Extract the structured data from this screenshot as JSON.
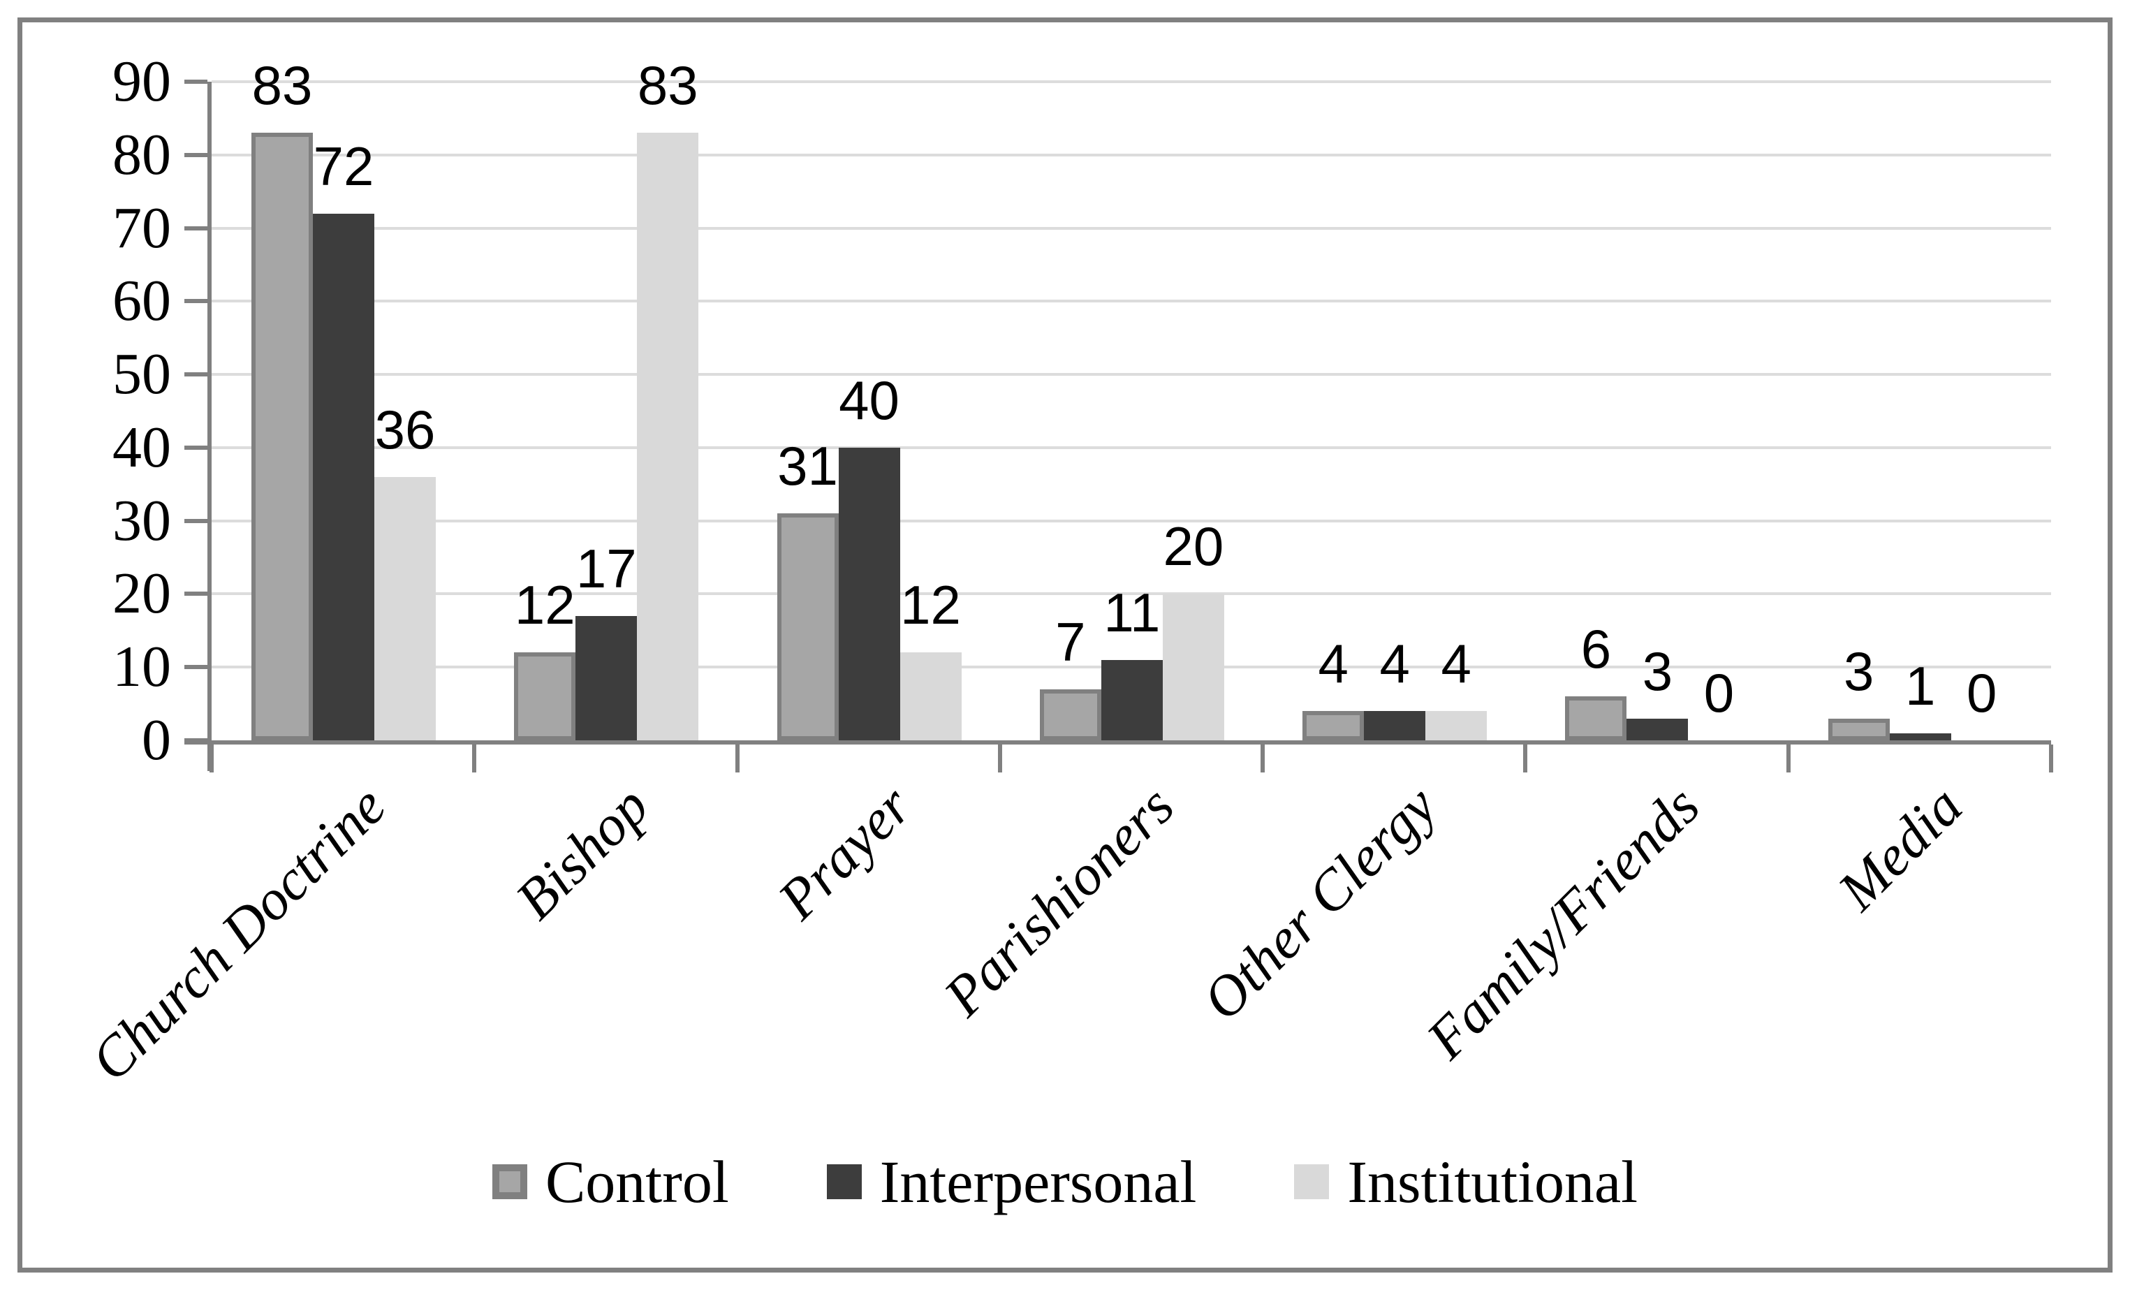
{
  "figure": {
    "background": "#ffffff",
    "border_color": "#808080"
  },
  "chart_data": {
    "type": "bar",
    "title": "",
    "xlabel": "",
    "ylabel": "",
    "categories": [
      "Church Doctrine",
      "Bishop",
      "Prayer",
      "Parishioners",
      "Other Clergy",
      "Family/Friends",
      "Media"
    ],
    "series": [
      {
        "name": "Control",
        "color": "#a6a6a6",
        "border_color": "#808080",
        "values": [
          83,
          12,
          31,
          7,
          4,
          6,
          3
        ]
      },
      {
        "name": "Interpersonal",
        "color": "#3d3d3d",
        "border_color": "#3d3d3d",
        "values": [
          72,
          17,
          40,
          11,
          4,
          3,
          1
        ]
      },
      {
        "name": "Institutional",
        "color": "#d9d9d9",
        "border_color": "#d9d9d9",
        "values": [
          36,
          83,
          12,
          20,
          4,
          0,
          0
        ]
      }
    ],
    "ylim": [
      0,
      90
    ],
    "yticks": [
      0,
      10,
      20,
      30,
      40,
      50,
      60,
      70,
      80,
      90
    ],
    "grid": true,
    "gridline_color": "#dcdcdc",
    "axis_color": "#808080",
    "data_labels": true,
    "legend_position": "bottom"
  }
}
